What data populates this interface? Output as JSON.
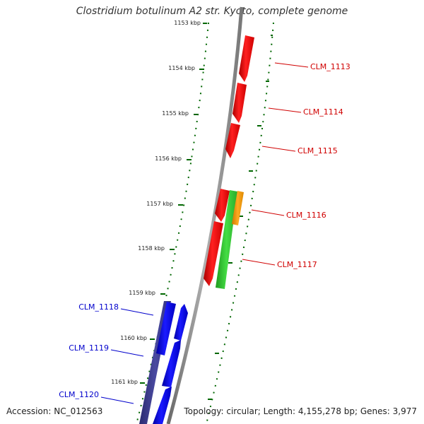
{
  "title": "Clostridium botulinum A2 str. Kyoto, complete genome",
  "accession": "Accession: NC_012563",
  "summary": "Topology: circular; Length: 4,155,278 bp; Genes: 3,977",
  "ruler": {
    "unit": "kbp",
    "ticks": [
      "1153 kbp",
      "1154 kbp",
      "1155 kbp",
      "1156 kbp",
      "1157 kbp",
      "1158 kbp",
      "1159 kbp",
      "1160 kbp",
      "1161 kbp"
    ]
  },
  "genes": [
    {
      "label": "CLM_1113",
      "strand": "forward",
      "color": "#d00000"
    },
    {
      "label": "CLM_1114",
      "strand": "forward",
      "color": "#d00000"
    },
    {
      "label": "CLM_1115",
      "strand": "forward",
      "color": "#d00000"
    },
    {
      "label": "CLM_1116",
      "strand": "forward",
      "color": "#d00000"
    },
    {
      "label": "CLM_1117",
      "strand": "forward",
      "color": "#d00000"
    },
    {
      "label": "CLM_1118",
      "strand": "reverse",
      "color": "#0000cc"
    },
    {
      "label": "CLM_1119",
      "strand": "reverse",
      "color": "#0000cc"
    },
    {
      "label": "CLM_1120",
      "strand": "reverse",
      "color": "#0000cc"
    }
  ],
  "colors": {
    "forward_cds": "#ff0000",
    "reverse_cds": "#0000ee",
    "rrna": "#33cc33",
    "misc_feature": "#ff9900",
    "operon_bar": "#3a3a8a",
    "backbone": "#888888",
    "tick": "#006600"
  }
}
